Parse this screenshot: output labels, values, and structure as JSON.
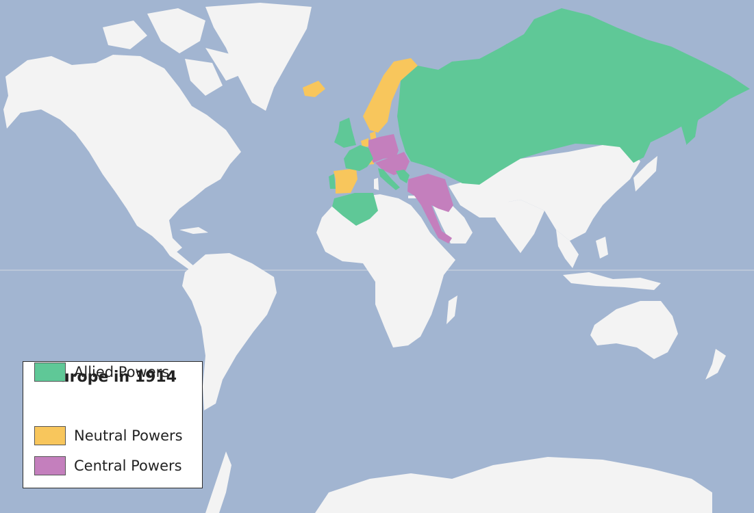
{
  "legend": {
    "title": "Europe in 1914",
    "items": [
      {
        "id": "neutral",
        "label": "Neutral Powers",
        "color": "#f8c65c"
      },
      {
        "id": "central",
        "label": "Central Powers",
        "color": "#c47fbd"
      },
      {
        "id": "allied",
        "label": "Allied Powers",
        "color": "#5fc897"
      }
    ]
  },
  "colors": {
    "ocean": "#a2b5d1",
    "land": "#f3f3f3",
    "neutral": "#f8c65c",
    "central": "#c47fbd",
    "allied": "#5fc897",
    "equator": "#c9d2de"
  },
  "regions": {
    "neutral": [
      "Iceland",
      "Norway",
      "Sweden",
      "Denmark",
      "Netherlands",
      "Switzerland",
      "Spain"
    ],
    "central": [
      "German Empire",
      "Austria-Hungary",
      "Ottoman Empire"
    ],
    "allied": [
      "Russian Empire",
      "United Kingdom",
      "France",
      "Belgium",
      "Italy",
      "Serbia",
      "Montenegro",
      "Greece",
      "Portugal",
      "French Algeria"
    ]
  }
}
